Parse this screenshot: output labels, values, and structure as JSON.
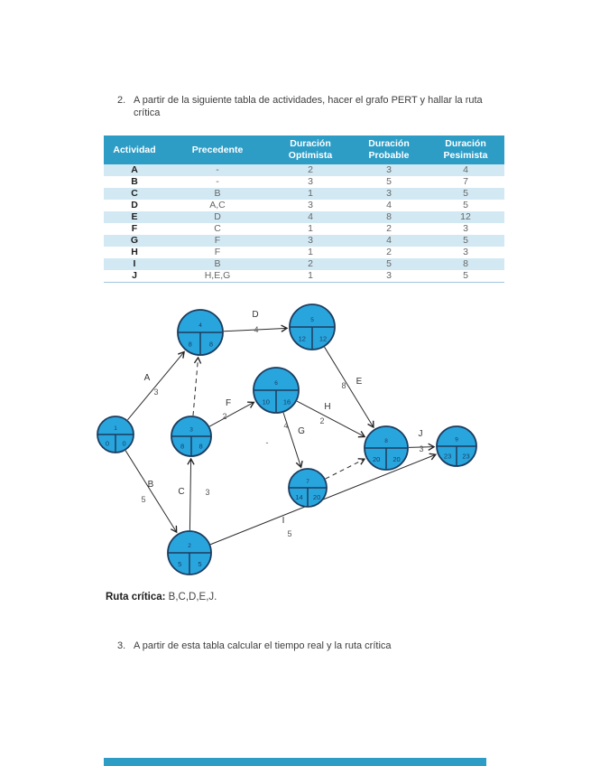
{
  "exercise2": {
    "number": "2.",
    "text": "A partir de la siguiente tabla  de actividades, hacer el grafo PERT y hallar la ruta crítica"
  },
  "table": {
    "headers": [
      "Actividad",
      "Precedente",
      "Duración\nOptimista",
      "Duración\nProbable",
      "Duración\nPesimista"
    ],
    "rows": [
      {
        "actividad": "A",
        "precedente": "-",
        "optimista": "2",
        "probable": "3",
        "pesimista": "4"
      },
      {
        "actividad": "B",
        "precedente": "-",
        "optimista": "3",
        "probable": "5",
        "pesimista": "7"
      },
      {
        "actividad": "C",
        "precedente": "B",
        "optimista": "1",
        "probable": "3",
        "pesimista": "5"
      },
      {
        "actividad": "D",
        "precedente": "A,C",
        "optimista": "3",
        "probable": "4",
        "pesimista": "5"
      },
      {
        "actividad": "E",
        "precedente": "D",
        "optimista": "4",
        "probable": "8",
        "pesimista": "12"
      },
      {
        "actividad": "F",
        "precedente": "C",
        "optimista": "1",
        "probable": "2",
        "pesimista": "3"
      },
      {
        "actividad": "G",
        "precedente": "F",
        "optimista": "3",
        "probable": "4",
        "pesimista": "5"
      },
      {
        "actividad": "H",
        "precedente": "F",
        "optimista": "1",
        "probable": "2",
        "pesimista": "3"
      },
      {
        "actividad": "I",
        "precedente": "B",
        "optimista": "2",
        "probable": "5",
        "pesimista": "8"
      },
      {
        "actividad": "J",
        "precedente": "H,E,G",
        "optimista": "1",
        "probable": "3",
        "pesimista": "5"
      }
    ]
  },
  "pert": {
    "nodes": [
      {
        "id": "1",
        "early": "0",
        "late": "0"
      },
      {
        "id": "2",
        "early": "5",
        "late": "5"
      },
      {
        "id": "3",
        "early": "8",
        "late": "8"
      },
      {
        "id": "4",
        "early": "8",
        "late": "8"
      },
      {
        "id": "5",
        "early": "12",
        "late": "12"
      },
      {
        "id": "6",
        "early": "10",
        "late": "16"
      },
      {
        "id": "7",
        "early": "14",
        "late": "20"
      },
      {
        "id": "8",
        "early": "20",
        "late": "20"
      },
      {
        "id": "9",
        "early": "23",
        "late": "23"
      }
    ],
    "edges": [
      {
        "activity": "A",
        "duration": "3",
        "from": "1",
        "to": "4",
        "dashed": false
      },
      {
        "activity": "B",
        "duration": "5",
        "from": "1",
        "to": "2",
        "dashed": false
      },
      {
        "activity": "C",
        "duration": "3",
        "from": "2",
        "to": "3",
        "dashed": false
      },
      {
        "activity": "D",
        "duration": "4",
        "from": "4",
        "to": "5",
        "dashed": false
      },
      {
        "activity": "E",
        "duration": "8",
        "from": "5",
        "to": "8",
        "dashed": false
      },
      {
        "activity": "F",
        "duration": "2",
        "from": "3",
        "to": "6",
        "dashed": false
      },
      {
        "activity": "G",
        "duration": "4",
        "from": "6",
        "to": "7",
        "dashed": false
      },
      {
        "activity": "H",
        "duration": "2",
        "from": "6",
        "to": "8",
        "dashed": false
      },
      {
        "activity": "I",
        "duration": "5",
        "from": "2",
        "to": "9",
        "dashed": false
      },
      {
        "activity": "J",
        "duration": "3",
        "from": "8",
        "to": "9",
        "dashed": false
      },
      {
        "activity": "",
        "duration": "",
        "from": "3",
        "to": "4",
        "dashed": true
      },
      {
        "activity": "",
        "duration": "",
        "from": "7",
        "to": "8",
        "dashed": true
      }
    ],
    "stray_mark": "-"
  },
  "critical_path": {
    "label": "Ruta crítica:",
    "value": "B,C,D,E,J."
  },
  "exercise3": {
    "number": "3.",
    "text": "A partir de esta tabla calcular el tiempo real y la ruta crítica"
  },
  "colors": {
    "table_header": "#2E9DC6",
    "table_row_alt": "#D2E9F4",
    "node_fill": "#29A5DE",
    "node_border": "#1C3D5F"
  }
}
